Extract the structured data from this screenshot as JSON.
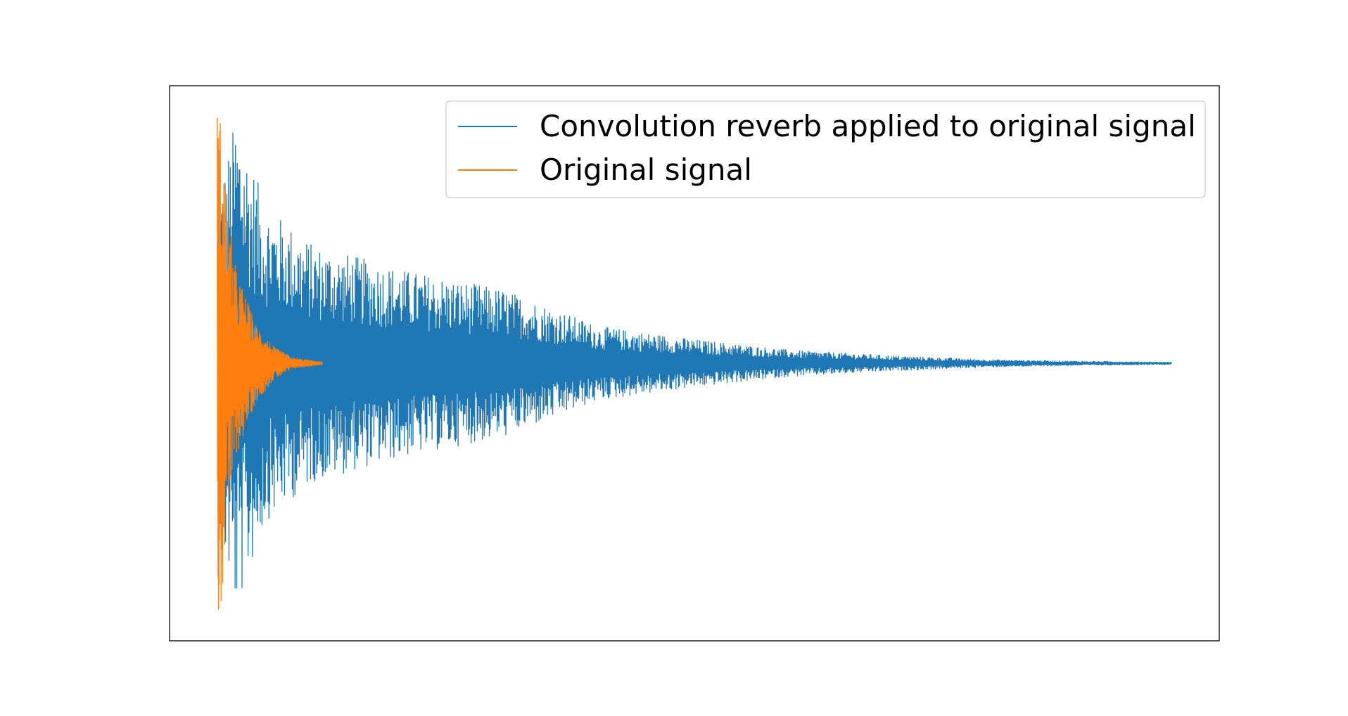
{
  "chart_data": {
    "type": "line",
    "title": "",
    "xlabel": "",
    "ylabel": "",
    "axes_visible": false,
    "grid": false,
    "legend_position": "top-right",
    "xlim": [
      -0.05,
      1.05
    ],
    "ylim": [
      -1.05,
      1.05
    ],
    "series": [
      {
        "name": "Convolution reverb applied to original signal",
        "color": "#1f77b4",
        "x_start": 0.0,
        "x_end": 1.0,
        "samples": 2200,
        "envelope": {
          "x": [
            0.0,
            0.02,
            0.05,
            0.1,
            0.15,
            0.2,
            0.3,
            0.4,
            0.5,
            0.6,
            0.7,
            0.8,
            0.9,
            1.0
          ],
          "amplitude": [
            0.6,
            0.95,
            0.6,
            0.45,
            0.4,
            0.35,
            0.28,
            0.14,
            0.09,
            0.05,
            0.03,
            0.015,
            0.008,
            0.004
          ]
        }
      },
      {
        "name": "Original signal",
        "color": "#ff7f0e",
        "x_start": 0.0,
        "x_end": 0.11,
        "samples": 420,
        "envelope": {
          "x": [
            0.0,
            0.005,
            0.01,
            0.02,
            0.04,
            0.06,
            0.08,
            0.11
          ],
          "amplitude": [
            1.0,
            0.9,
            0.6,
            0.35,
            0.15,
            0.06,
            0.02,
            0.005
          ]
        }
      }
    ]
  }
}
